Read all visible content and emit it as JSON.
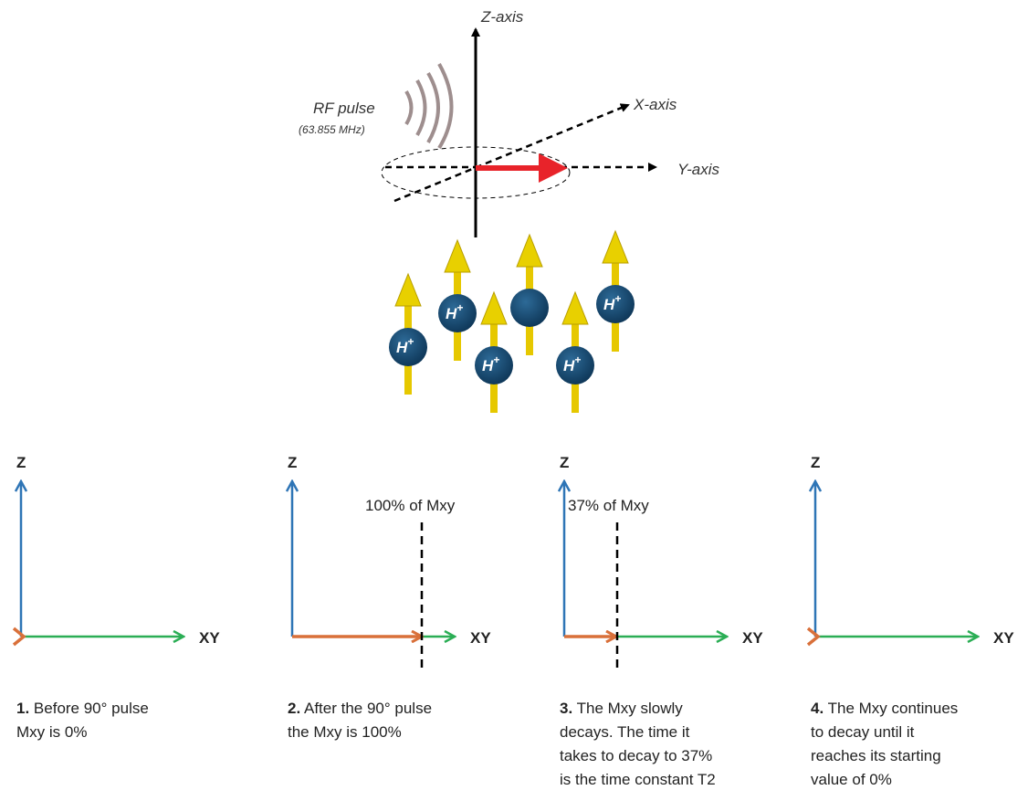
{
  "header_diagram": {
    "z_axis": "Z-axis",
    "x_axis": "X-axis",
    "y_axis": "Y-axis",
    "rf_pulse": "RF pulse",
    "rf_frequency": "(63.855 MHz)",
    "protons": [
      {
        "base": "H",
        "sup": "+"
      },
      {
        "base": "H",
        "sup": "+"
      },
      {
        "base": "H",
        "sup": "+"
      },
      {
        "base": "H",
        "sup": "+"
      },
      {
        "base": "H",
        "sup": "+"
      }
    ]
  },
  "panels": [
    {
      "z_label": "Z",
      "xy_label": "XY",
      "caption": {
        "number": "1.",
        "lines": [
          "Before 90° pulse",
          "Mxy is 0%"
        ]
      }
    },
    {
      "z_label": "Z",
      "xy_label": "XY",
      "marker_label": "100% of Mxy",
      "caption": {
        "number": "2.",
        "lines": [
          "After the 90° pulse",
          "the Mxy is 100%"
        ]
      }
    },
    {
      "z_label": "Z",
      "xy_label": "XY",
      "marker_label": "37% of Mxy",
      "caption": {
        "number": "3.",
        "lines": [
          "The Mxy slowly",
          "decays. The time it",
          "takes to decay to 37%",
          "is the time constant T2"
        ]
      }
    },
    {
      "z_label": "Z",
      "xy_label": "XY",
      "caption": {
        "number": "4.",
        "lines": [
          "The Mxy continues",
          "to decay until it",
          "reaches its starting",
          "value of 0%"
        ]
      }
    }
  ]
}
